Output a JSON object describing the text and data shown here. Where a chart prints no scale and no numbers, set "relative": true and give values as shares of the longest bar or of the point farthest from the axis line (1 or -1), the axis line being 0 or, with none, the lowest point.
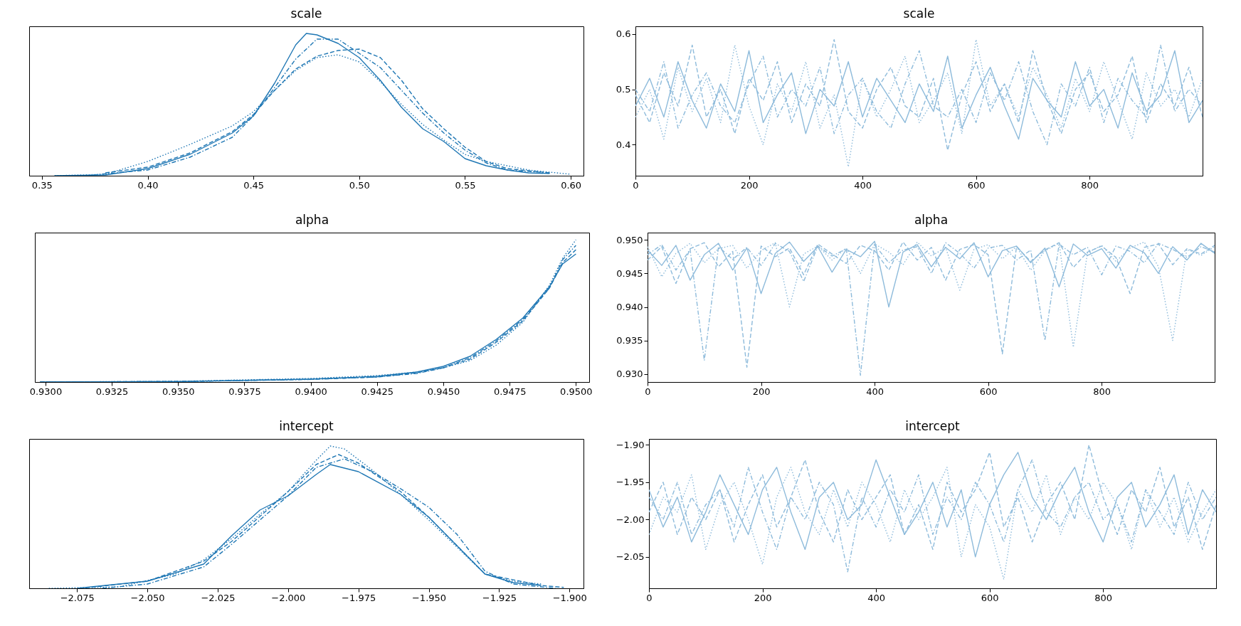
{
  "chart_data": [
    {
      "type": "line",
      "title": "scale",
      "relative": true,
      "xlim": [
        0.344,
        0.606
      ],
      "xticks": [
        0.35,
        {
          "value": 0.4,
          "label": "0.40"
        },
        0.45,
        {
          "value": 0.5,
          "label": "0.50"
        },
        0.55,
        {
          "value": 0.6,
          "label": "0.60"
        }
      ],
      "grid": false,
      "series": [
        {
          "color": "#1f77b4",
          "line_style": "solid",
          "x": [
            0.356,
            0.38,
            0.4,
            0.42,
            0.44,
            0.45,
            0.46,
            0.47,
            0.475,
            0.48,
            0.49,
            0.5,
            0.51,
            0.52,
            0.53,
            0.54,
            0.55,
            0.56,
            0.57,
            0.58,
            0.59
          ],
          "values": [
            0,
            0.005,
            0.05,
            0.15,
            0.3,
            0.42,
            0.65,
            0.92,
            1,
            0.99,
            0.93,
            0.83,
            0.67,
            0.48,
            0.33,
            0.24,
            0.12,
            0.07,
            0.04,
            0.02,
            0.015
          ]
        },
        {
          "color": "#1f77b4",
          "line_style": "dashed",
          "x": [
            0.38,
            0.4,
            0.42,
            0.44,
            0.45,
            0.46,
            0.47,
            0.48,
            0.49,
            0.5,
            0.51,
            0.52,
            0.53,
            0.54,
            0.55,
            0.56,
            0.57,
            0.59
          ],
          "values": [
            0.02,
            0.06,
            0.16,
            0.31,
            0.43,
            0.6,
            0.75,
            0.84,
            0.88,
            0.89,
            0.83,
            0.67,
            0.47,
            0.33,
            0.2,
            0.1,
            0.05,
            0.02
          ]
        },
        {
          "color": "#1f77b4",
          "line_style": "dotted",
          "x": [
            0.356,
            0.38,
            0.4,
            0.42,
            0.44,
            0.45,
            0.46,
            0.47,
            0.48,
            0.49,
            0.5,
            0.51,
            0.52,
            0.53,
            0.54,
            0.55,
            0.56,
            0.58,
            0.6
          ],
          "values": [
            0,
            0.01,
            0.1,
            0.22,
            0.35,
            0.45,
            0.6,
            0.74,
            0.83,
            0.85,
            0.8,
            0.66,
            0.5,
            0.36,
            0.25,
            0.15,
            0.1,
            0.04,
            0.01
          ]
        },
        {
          "color": "#1f77b4",
          "line_style": "dashdot",
          "x": [
            0.37,
            0.4,
            0.42,
            0.44,
            0.45,
            0.46,
            0.47,
            0.48,
            0.49,
            0.5,
            0.51,
            0.52,
            0.53,
            0.54,
            0.55,
            0.56,
            0.57,
            0.59
          ],
          "values": [
            0,
            0.04,
            0.13,
            0.27,
            0.42,
            0.62,
            0.82,
            0.96,
            0.96,
            0.86,
            0.76,
            0.6,
            0.44,
            0.3,
            0.18,
            0.09,
            0.04,
            0.02
          ]
        }
      ]
    },
    {
      "type": "line",
      "title": "scale",
      "xlim": [
        0,
        999
      ],
      "xticks": [
        0,
        200,
        400,
        600,
        800
      ],
      "ylim": [
        0.344,
        0.614
      ],
      "yticks": [
        0.4,
        0.5,
        0.6
      ],
      "grid": false,
      "x": [
        0,
        25,
        50,
        75,
        100,
        125,
        150,
        175,
        200,
        225,
        250,
        275,
        300,
        325,
        350,
        375,
        400,
        425,
        450,
        475,
        500,
        525,
        550,
        575,
        600,
        625,
        650,
        675,
        700,
        725,
        750,
        775,
        800,
        825,
        850,
        875,
        900,
        925,
        950,
        975,
        999
      ],
      "series": [
        {
          "color": "#8ebbdb",
          "line_style": "solid",
          "values": [
            0.47,
            0.52,
            0.45,
            0.55,
            0.48,
            0.43,
            0.51,
            0.46,
            0.57,
            0.44,
            0.49,
            0.53,
            0.42,
            0.5,
            0.47,
            0.55,
            0.45,
            0.52,
            0.48,
            0.44,
            0.51,
            0.46,
            0.56,
            0.43,
            0.49,
            0.54,
            0.47,
            0.41,
            0.52,
            0.48,
            0.45,
            0.55,
            0.47,
            0.5,
            0.43,
            0.53,
            0.46,
            0.49,
            0.57,
            0.44,
            0.48
          ]
        },
        {
          "color": "#8ebbdb",
          "line_style": "dashed",
          "values": [
            0.49,
            0.44,
            0.53,
            0.47,
            0.58,
            0.45,
            0.5,
            0.42,
            0.52,
            0.48,
            0.55,
            0.44,
            0.51,
            0.47,
            0.59,
            0.46,
            0.43,
            0.5,
            0.54,
            0.47,
            0.45,
            0.52,
            0.39,
            0.49,
            0.55,
            0.46,
            0.51,
            0.44,
            0.57,
            0.48,
            0.42,
            0.5,
            0.53,
            0.46,
            0.49,
            0.56,
            0.44,
            0.51,
            0.47,
            0.54,
            0.45
          ]
        },
        {
          "color": "#8ebbdb",
          "line_style": "dotted",
          "values": [
            0.45,
            0.5,
            0.41,
            0.54,
            0.46,
            0.52,
            0.44,
            0.58,
            0.47,
            0.4,
            0.51,
            0.46,
            0.55,
            0.43,
            0.49,
            0.36,
            0.52,
            0.45,
            0.5,
            0.56,
            0.44,
            0.48,
            0.53,
            0.42,
            0.59,
            0.47,
            0.51,
            0.45,
            0.54,
            0.49,
            0.43,
            0.52,
            0.46,
            0.55,
            0.48,
            0.41,
            0.53,
            0.47,
            0.5,
            0.45,
            0.52
          ]
        },
        {
          "color": "#8ebbdb",
          "line_style": "dashdot",
          "values": [
            0.5,
            0.46,
            0.55,
            0.43,
            0.49,
            0.53,
            0.47,
            0.44,
            0.51,
            0.56,
            0.45,
            0.5,
            0.47,
            0.54,
            0.42,
            0.49,
            0.52,
            0.46,
            0.43,
            0.51,
            0.57,
            0.47,
            0.45,
            0.5,
            0.44,
            0.53,
            0.48,
            0.55,
            0.46,
            0.4,
            0.51,
            0.47,
            0.54,
            0.44,
            0.52,
            0.48,
            0.45,
            0.58,
            0.46,
            0.5,
            0.47
          ]
        }
      ]
    },
    {
      "type": "line",
      "title": "alpha",
      "relative": true,
      "xlim": [
        0.9296,
        0.9505
      ],
      "xticks": [
        {
          "value": 0.93,
          "label": "0.9300"
        },
        0.9325,
        {
          "value": 0.935,
          "label": "0.9350"
        },
        0.9375,
        {
          "value": 0.94,
          "label": "0.9400"
        },
        0.9425,
        {
          "value": 0.945,
          "label": "0.9450"
        },
        0.9475,
        {
          "value": 0.95,
          "label": "0.9500"
        }
      ],
      "grid": false,
      "series": [
        {
          "color": "#1f77b4",
          "line_style": "solid",
          "x": [
            0.9298,
            0.935,
            0.94,
            0.9425,
            0.944,
            0.945,
            0.946,
            0.947,
            0.948,
            0.949,
            0.9495,
            0.95
          ],
          "values": [
            0,
            0.003,
            0.02,
            0.04,
            0.07,
            0.11,
            0.18,
            0.3,
            0.45,
            0.67,
            0.83,
            0.9
          ]
        },
        {
          "color": "#1f77b4",
          "line_style": "dashed",
          "x": [
            0.9298,
            0.935,
            0.94,
            0.9425,
            0.944,
            0.945,
            0.946,
            0.947,
            0.948,
            0.949,
            0.9495,
            0.95
          ],
          "values": [
            0,
            0.004,
            0.02,
            0.035,
            0.065,
            0.1,
            0.16,
            0.28,
            0.43,
            0.66,
            0.84,
            0.93
          ]
        },
        {
          "color": "#1f77b4",
          "line_style": "dotted",
          "x": [
            0.9298,
            0.935,
            0.94,
            0.9425,
            0.944,
            0.945,
            0.946,
            0.947,
            0.948,
            0.949,
            0.9495,
            0.95
          ],
          "values": [
            0,
            0.005,
            0.025,
            0.045,
            0.07,
            0.1,
            0.15,
            0.26,
            0.42,
            0.68,
            0.87,
            1
          ]
        },
        {
          "color": "#1f77b4",
          "line_style": "dashdot",
          "x": [
            0.9298,
            0.935,
            0.94,
            0.9425,
            0.944,
            0.945,
            0.946,
            0.947,
            0.948,
            0.949,
            0.9495,
            0.95
          ],
          "values": [
            0,
            0.003,
            0.018,
            0.035,
            0.06,
            0.1,
            0.17,
            0.29,
            0.44,
            0.66,
            0.86,
            0.96
          ]
        }
      ]
    },
    {
      "type": "line",
      "title": "alpha",
      "xlim": [
        0,
        999
      ],
      "xticks": [
        0,
        200,
        400,
        600,
        800
      ],
      "ylim": [
        0.9288,
        0.9511
      ],
      "yticks": [
        {
          "value": 0.93,
          "label": "0.930"
        },
        0.935,
        {
          "value": 0.94,
          "label": "0.940"
        },
        0.945,
        {
          "value": 0.95,
          "label": "0.950"
        }
      ],
      "grid": false,
      "x": [
        0,
        25,
        50,
        75,
        100,
        125,
        150,
        175,
        200,
        225,
        250,
        275,
        300,
        325,
        350,
        375,
        400,
        425,
        450,
        475,
        500,
        525,
        550,
        575,
        600,
        625,
        650,
        675,
        700,
        725,
        750,
        775,
        800,
        825,
        850,
        875,
        900,
        925,
        950,
        975,
        999
      ],
      "series": [
        {
          "color": "#8ebbdb",
          "line_style": "solid",
          "values": [
            0.9485,
            0.9462,
            0.9492,
            0.944,
            0.9478,
            0.9495,
            0.9455,
            0.9488,
            0.942,
            0.948,
            0.9497,
            0.9468,
            0.949,
            0.9452,
            0.9486,
            0.9475,
            0.9498,
            0.94,
            0.9482,
            0.9493,
            0.946,
            0.9489,
            0.9472,
            0.9496,
            0.9445,
            0.9484,
            0.9491,
            0.9466,
            0.9488,
            0.943,
            0.9494,
            0.9477,
            0.9487,
            0.9458,
            0.9492,
            0.9481,
            0.945,
            0.949,
            0.947,
            0.9495,
            0.948
          ]
        },
        {
          "color": "#8ebbdb",
          "line_style": "dashed",
          "values": [
            0.947,
            0.949,
            0.9435,
            0.9487,
            0.9496,
            0.946,
            0.9483,
            0.931,
            0.9491,
            0.9475,
            0.9488,
            0.9448,
            0.9494,
            0.9479,
            0.9465,
            0.9492,
            0.9484,
            0.9455,
            0.9497,
            0.947,
            0.9489,
            0.944,
            0.9486,
            0.9493,
            0.9478,
            0.933,
            0.949,
            0.9468,
            0.9485,
            0.9496,
            0.9459,
            0.9482,
            0.9491,
            0.9474,
            0.942,
            0.9489,
            0.9494,
            0.9463,
            0.9487,
            0.9479,
            0.9492
          ]
        },
        {
          "color": "#8ebbdb",
          "line_style": "dotted",
          "values": [
            0.949,
            0.9445,
            0.948,
            0.9495,
            0.9466,
            0.9487,
            0.9492,
            0.9458,
            0.9484,
            0.9496,
            0.94,
            0.9479,
            0.9491,
            0.947,
            0.9488,
            0.945,
            0.9494,
            0.9482,
            0.9463,
            0.9497,
            0.9476,
            0.9489,
            0.9425,
            0.9486,
            0.9493,
            0.9472,
            0.949,
            0.9455,
            0.9484,
            0.9495,
            0.934,
            0.9481,
            0.9492,
            0.9468,
            0.9488,
            0.9497,
            0.946,
            0.935,
            0.9486,
            0.9477,
            0.949
          ]
        },
        {
          "color": "#8ebbdb",
          "line_style": "dashdot",
          "values": [
            0.9478,
            0.9493,
            0.9455,
            0.9486,
            0.932,
            0.949,
            0.9471,
            0.9489,
            0.9462,
            0.9495,
            0.9483,
            0.9438,
            0.9491,
            0.9476,
            0.9487,
            0.9298,
            0.9493,
            0.9466,
            0.9485,
            0.949,
            0.945,
            0.9496,
            0.948,
            0.9458,
            0.9488,
            0.9492,
            0.947,
            0.9485,
            0.935,
            0.9494,
            0.9478,
            0.9489,
            0.9448,
            0.9491,
            0.9483,
            0.9466,
            0.9495,
            0.9486,
            0.9474,
            0.949,
            0.9482
          ]
        }
      ]
    },
    {
      "type": "line",
      "title": "intercept",
      "relative": true,
      "xlim": [
        -2.092,
        -1.895
      ],
      "xticks": [
        {
          "value": -2.075,
          "label": "−2.075"
        },
        {
          "value": -2.05,
          "label": "−2.050"
        },
        {
          "value": -2.025,
          "label": "−2.025"
        },
        {
          "value": -2,
          "label": "−2.000"
        },
        {
          "value": -1.975,
          "label": "−1.975"
        },
        {
          "value": -1.95,
          "label": "−1.950"
        },
        {
          "value": -1.925,
          "label": "−1.925"
        },
        {
          "value": -1.9,
          "label": "−1.900"
        }
      ],
      "grid": false,
      "series": [
        {
          "color": "#1f77b4",
          "line_style": "solid",
          "x": [
            -2.075,
            -2.05,
            -2.03,
            -2.02,
            -2.01,
            -2,
            -1.99,
            -1.985,
            -1.975,
            -1.96,
            -1.95,
            -1.94,
            -1.93,
            -1.92,
            -1.91
          ],
          "values": [
            0,
            0.05,
            0.17,
            0.37,
            0.55,
            0.65,
            0.8,
            0.87,
            0.82,
            0.66,
            0.5,
            0.3,
            0.1,
            0.04,
            0.02
          ]
        },
        {
          "color": "#1f77b4",
          "line_style": "dashed",
          "x": [
            -2.072,
            -2.05,
            -2.03,
            -2.02,
            -2,
            -1.99,
            -1.982,
            -1.975,
            -1.96,
            -1.95,
            -1.94,
            -1.93,
            -1.91,
            -1.902
          ],
          "values": [
            0.003,
            0.05,
            0.19,
            0.33,
            0.68,
            0.87,
            0.94,
            0.88,
            0.68,
            0.5,
            0.3,
            0.1,
            0.02,
            0.006
          ]
        },
        {
          "color": "#1f77b4",
          "line_style": "dotted",
          "x": [
            -2.085,
            -2.06,
            -2.04,
            -2.03,
            -2.02,
            -2.01,
            -2,
            -1.99,
            -1.985,
            -1.98,
            -1.97,
            -1.96,
            -1.95,
            -1.94,
            -1.93,
            -1.92,
            -1.91
          ],
          "values": [
            0,
            0.01,
            0.1,
            0.2,
            0.35,
            0.52,
            0.68,
            0.9,
            1,
            0.98,
            0.83,
            0.66,
            0.48,
            0.29,
            0.1,
            0.05,
            0.03
          ]
        },
        {
          "color": "#1f77b4",
          "line_style": "dashdot",
          "x": [
            -2.066,
            -2.05,
            -2.03,
            -2.02,
            -2,
            -1.99,
            -1.98,
            -1.97,
            -1.96,
            -1.95,
            -1.94,
            -1.93,
            -1.92,
            -1.905
          ],
          "values": [
            0,
            0.03,
            0.15,
            0.31,
            0.65,
            0.85,
            0.91,
            0.82,
            0.7,
            0.57,
            0.38,
            0.12,
            0.03,
            0
          ]
        }
      ]
    },
    {
      "type": "line",
      "title": "intercept",
      "xlim": [
        0,
        999
      ],
      "xticks": [
        0,
        200,
        400,
        600,
        800
      ],
      "ylim": [
        -2.092,
        -1.892
      ],
      "yticks": [
        {
          "value": -2.05,
          "label": "−2.05"
        },
        {
          "value": -2,
          "label": "−2.00"
        },
        {
          "value": -1.95,
          "label": "−1.95"
        },
        {
          "value": -1.9,
          "label": "−1.90"
        }
      ],
      "grid": false,
      "x": [
        0,
        25,
        50,
        75,
        100,
        125,
        150,
        175,
        200,
        225,
        250,
        275,
        300,
        325,
        350,
        375,
        400,
        425,
        450,
        475,
        500,
        525,
        550,
        575,
        600,
        625,
        650,
        675,
        700,
        725,
        750,
        775,
        800,
        825,
        850,
        875,
        900,
        925,
        950,
        975,
        999
      ],
      "series": [
        {
          "color": "#8ebbdb",
          "line_style": "solid",
          "values": [
            -1.96,
            -2.01,
            -1.97,
            -2.03,
            -1.99,
            -1.94,
            -1.98,
            -2.02,
            -1.96,
            -1.93,
            -1.99,
            -2.04,
            -1.97,
            -1.95,
            -2,
            -1.98,
            -1.92,
            -1.97,
            -2.02,
            -1.99,
            -1.95,
            -2.01,
            -1.96,
            -2.05,
            -1.98,
            -1.94,
            -1.91,
            -1.97,
            -2,
            -1.96,
            -1.93,
            -1.99,
            -2.03,
            -1.97,
            -1.95,
            -2.01,
            -1.98,
            -1.94,
            -2.02,
            -1.96,
            -1.99
          ]
        },
        {
          "color": "#8ebbdb",
          "line_style": "dashed",
          "values": [
            -1.99,
            -1.95,
            -2.02,
            -1.97,
            -2,
            -1.96,
            -2.03,
            -1.98,
            -1.94,
            -2.01,
            -1.97,
            -1.92,
            -1.99,
            -2.03,
            -1.96,
            -2,
            -1.97,
            -1.94,
            -2.02,
            -1.98,
            -2.04,
            -1.95,
            -1.99,
            -1.96,
            -1.91,
            -2.01,
            -1.97,
            -2.03,
            -1.98,
            -1.95,
            -2,
            -1.9,
            -1.97,
            -2.02,
            -1.96,
            -1.99,
            -1.93,
            -2.01,
            -1.97,
            -2.04,
            -1.98
          ]
        },
        {
          "color": "#8ebbdb",
          "line_style": "dotted",
          "values": [
            -2.02,
            -1.97,
            -1.99,
            -1.94,
            -2.04,
            -1.98,
            -1.95,
            -2,
            -2.06,
            -1.97,
            -1.93,
            -1.99,
            -2.02,
            -1.96,
            -2.01,
            -1.95,
            -1.98,
            -2.03,
            -1.96,
            -2,
            -1.97,
            -1.93,
            -2.05,
            -1.98,
            -2.01,
            -2.08,
            -1.96,
            -1.99,
            -1.94,
            -2.02,
            -1.97,
            -2,
            -1.95,
            -1.98,
            -2.04,
            -1.96,
            -2.01,
            -1.97,
            -2.03,
            -1.99,
            -1.96
          ]
        },
        {
          "color": "#8ebbdb",
          "line_style": "dashdot",
          "values": [
            -1.97,
            -2,
            -1.95,
            -2.02,
            -1.98,
            -1.96,
            -2.01,
            -1.93,
            -1.99,
            -2.04,
            -1.97,
            -2,
            -1.95,
            -1.98,
            -2.07,
            -1.97,
            -2.01,
            -1.96,
            -1.99,
            -1.94,
            -2.02,
            -1.97,
            -2,
            -1.95,
            -1.98,
            -2.03,
            -1.96,
            -1.92,
            -1.99,
            -2.01,
            -1.97,
            -1.95,
            -2,
            -1.98,
            -2.03,
            -1.96,
            -1.99,
            -2.02,
            -1.95,
            -2,
            -1.97
          ]
        }
      ]
    }
  ]
}
